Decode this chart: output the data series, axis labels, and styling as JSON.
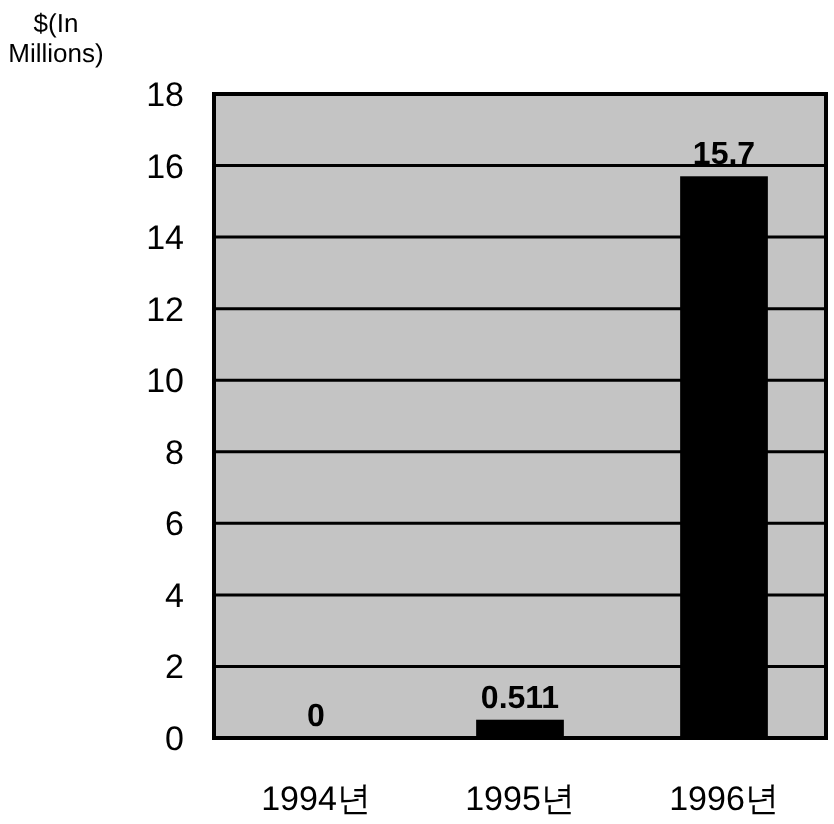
{
  "chart_data": {
    "type": "bar",
    "ylabel": "$(In Millions)",
    "categories": [
      "1994년",
      "1995년",
      "1996년"
    ],
    "values": [
      0,
      0.511,
      15.7
    ],
    "color": "#000000",
    "ylim": [
      0,
      18
    ],
    "yticks": [
      0,
      2,
      4,
      6,
      8,
      10,
      12,
      14,
      16,
      18
    ],
    "grid": "y",
    "data_labels": true
  }
}
